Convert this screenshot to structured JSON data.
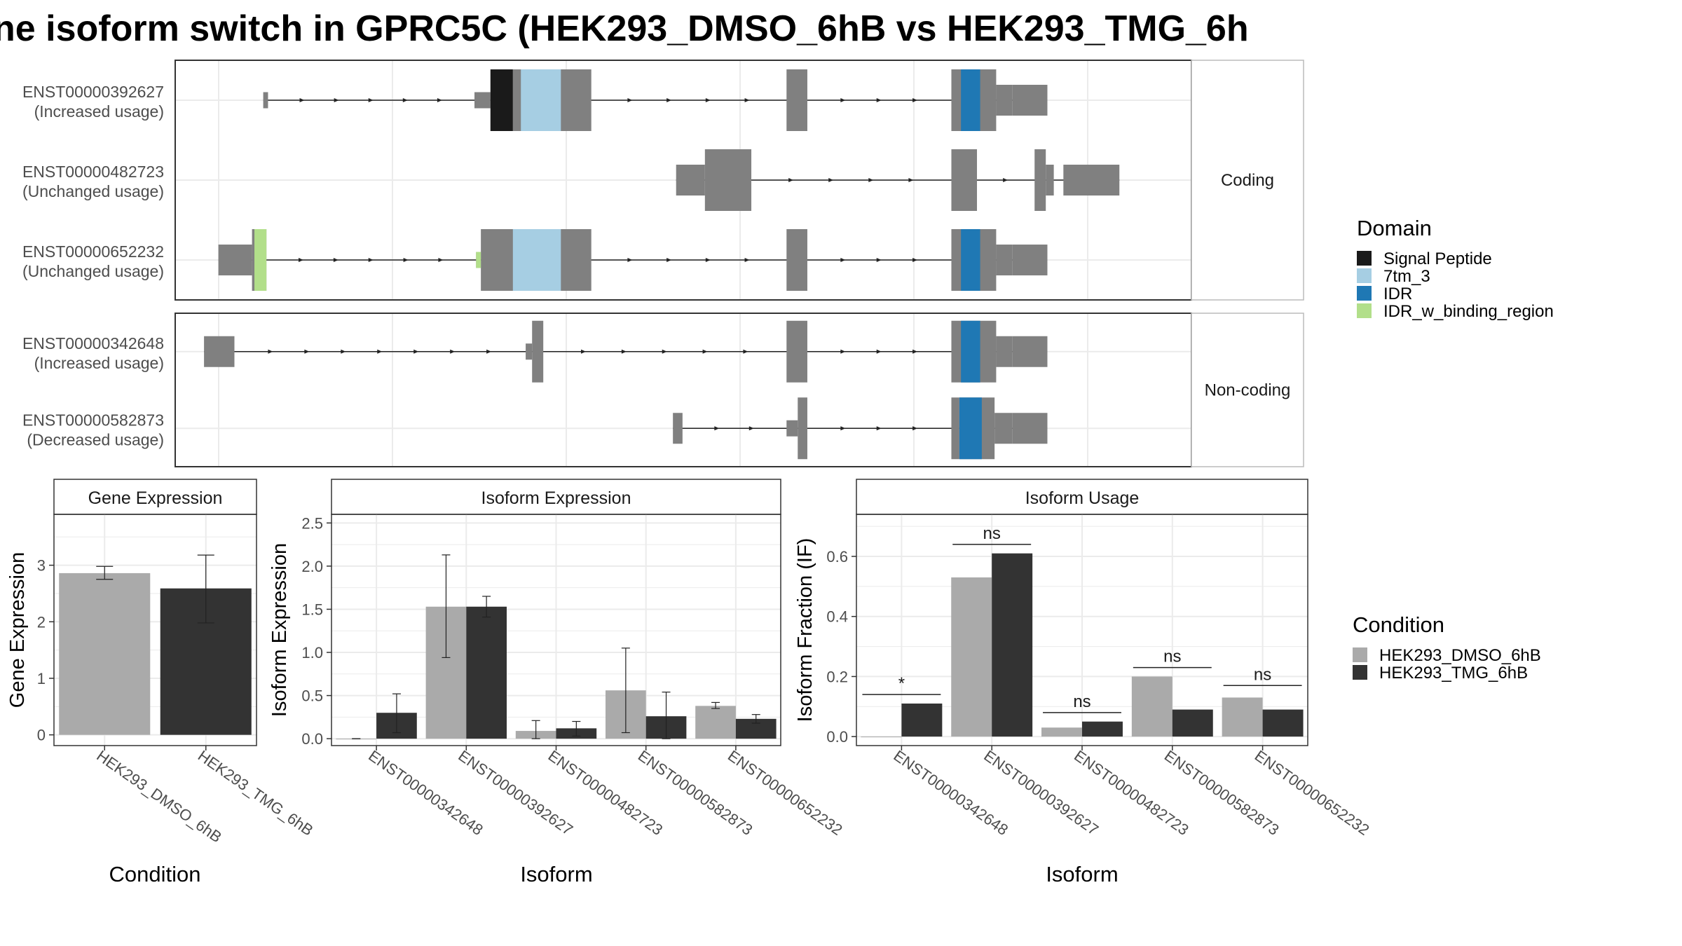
{
  "title": "ne isoform switch in GPRC5C (HEK293_DMSO_6hB vs HEK293_TMG_6h",
  "colors": {
    "exon": "#808080",
    "dmso": "#aaaaaa",
    "tmg": "#333333",
    "signal_peptide": "#1a1a1a",
    "tm3": "#a6cee3",
    "idr": "#1f78b4",
    "idr_binding": "#b2df8a",
    "grid": "#ebebeb",
    "panel_border": "#333333",
    "strip_border": "#bbbbbb"
  },
  "legends": {
    "domain": {
      "title": "Domain",
      "items": [
        {
          "label": "Signal Peptide",
          "color": "#1a1a1a"
        },
        {
          "label": "7tm_3",
          "color": "#a6cee3"
        },
        {
          "label": "IDR",
          "color": "#1f78b4"
        },
        {
          "label": "IDR_w_binding_region",
          "color": "#b2df8a"
        }
      ]
    },
    "condition": {
      "title": "Condition",
      "items": [
        {
          "label": "HEK293_DMSO_6hB",
          "color": "#aaaaaa"
        },
        {
          "label": "HEK293_TMG_6hB",
          "color": "#333333"
        }
      ]
    }
  },
  "chart_data": [
    {
      "type": "gene_structure",
      "facets": [
        {
          "strip": "Coding",
          "isoforms": [
            {
              "id": "ENST00000392627",
              "usage": "(Increased usage)",
              "exons": [
                [
                  10,
                  13,
                  "s"
                ],
                [
                  142,
                  152,
                  "s"
                ],
                [
                  152,
                  215,
                  "b"
                ],
                [
                  337,
                  350,
                  "b"
                ],
                [
                  440,
                  468,
                  "b"
                ],
                [
                  468,
                  478,
                  "t"
                ],
                [
                  478,
                  500,
                  "t"
                ]
              ],
              "domains": [
                [
                  152,
                  166,
                  "signal_peptide"
                ],
                [
                  166,
                  171,
                  "gray"
                ],
                [
                  171,
                  196,
                  "tm3"
                ],
                [
                  446,
                  458,
                  "idr"
                ]
              ]
            },
            {
              "id": "ENST00000482723",
              "usage": "(Unchanged usage)",
              "exons": [
                [
                  268,
                  286,
                  "t"
                ],
                [
                  286,
                  315,
                  "b"
                ],
                [
                  440,
                  456,
                  "b"
                ],
                [
                  492,
                  499,
                  "b"
                ],
                [
                  499,
                  504,
                  "t"
                ],
                [
                  510,
                  545,
                  "t"
                ]
              ],
              "domains": []
            },
            {
              "id": "ENST00000652232",
              "usage": "(Unchanged usage)",
              "exons": [
                [
                  -18,
                  3,
                  "t"
                ],
                [
                  3,
                  12,
                  "b"
                ],
                [
                  143,
                  146,
                  "s"
                ],
                [
                  146,
                  215,
                  "b"
                ],
                [
                  337,
                  350,
                  "b"
                ],
                [
                  440,
                  468,
                  "b"
                ],
                [
                  468,
                  478,
                  "t"
                ],
                [
                  478,
                  500,
                  "t"
                ]
              ],
              "domains": [
                [
                  4.5,
                  12,
                  "idr_binding"
                ],
                [
                  143,
                  146,
                  "idr_binding"
                ],
                [
                  166,
                  196,
                  "tm3"
                ],
                [
                  446,
                  458,
                  "idr"
                ]
              ]
            }
          ]
        },
        {
          "strip": "Non-coding",
          "isoforms": [
            {
              "id": "ENST00000342648",
              "usage": "(Increased usage)",
              "exons": [
                [
                  -27,
                  -8,
                  "t"
                ],
                [
                  174,
                  178,
                  "s"
                ],
                [
                  178,
                  185,
                  "b"
                ],
                [
                  337,
                  350,
                  "b"
                ],
                [
                  440,
                  468,
                  "b"
                ],
                [
                  468,
                  478,
                  "t"
                ],
                [
                  478,
                  500,
                  "t"
                ]
              ],
              "domains": [
                [
                  446,
                  458,
                  "idr"
                ]
              ]
            },
            {
              "id": "ENST00000582873",
              "usage": "(Decreased usage)",
              "exons": [
                [
                  266,
                  272,
                  "t"
                ],
                [
                  337,
                  344,
                  "s"
                ],
                [
                  344,
                  350,
                  "b"
                ],
                [
                  440,
                  445,
                  "b"
                ],
                [
                  445,
                  467,
                  "b"
                ],
                [
                  467,
                  478,
                  "t"
                ],
                [
                  478,
                  500,
                  "t"
                ]
              ],
              "domains": [
                [
                  445,
                  459,
                  "idr"
                ]
              ]
            }
          ]
        }
      ]
    },
    {
      "type": "bar",
      "title": "Gene Expression",
      "xlabel": "Condition",
      "ylabel": "Gene Expression",
      "categories": [
        "HEK293_DMSO_6hB",
        "HEK293_TMG_6hB"
      ],
      "values": [
        2.86,
        2.59
      ],
      "error_low": [
        2.75,
        1.98
      ],
      "error_high": [
        2.98,
        3.18
      ],
      "ylim": [
        -0.19,
        3.9
      ],
      "yticks": [
        0,
        1,
        2,
        3
      ]
    },
    {
      "type": "bar",
      "title": "Isoform Expression",
      "xlabel": "Isoform",
      "ylabel": "Isoform Expression",
      "categories": [
        "ENST00000342648",
        "ENST00000392627",
        "ENST00000482723",
        "ENST00000582873",
        "ENST00000652232"
      ],
      "series": [
        {
          "name": "HEK293_DMSO_6hB",
          "values": [
            0.0,
            1.53,
            0.09,
            0.56,
            0.38
          ],
          "error_low": [
            0.0,
            0.94,
            0.0,
            0.07,
            0.35
          ],
          "error_high": [
            0.0,
            2.13,
            0.21,
            1.05,
            0.42
          ]
        },
        {
          "name": "HEK293_TMG_6hB",
          "values": [
            0.3,
            1.53,
            0.12,
            0.26,
            0.23
          ],
          "error_low": [
            0.07,
            1.41,
            0.03,
            0.0,
            0.18
          ],
          "error_high": [
            0.52,
            1.65,
            0.2,
            0.54,
            0.28
          ]
        }
      ],
      "ylim": [
        -0.08,
        2.6
      ],
      "yticks": [
        0.0,
        0.5,
        1.0,
        1.5,
        2.0,
        2.5
      ]
    },
    {
      "type": "bar",
      "title": "Isoform Usage",
      "xlabel": "Isoform",
      "ylabel": "Isoform Fraction (IF)",
      "categories": [
        "ENST00000342648",
        "ENST00000392627",
        "ENST00000482723",
        "ENST00000582873",
        "ENST00000652232"
      ],
      "series": [
        {
          "name": "HEK293_DMSO_6hB",
          "values": [
            0.0,
            0.53,
            0.03,
            0.2,
            0.13
          ]
        },
        {
          "name": "HEK293_TMG_6hB",
          "values": [
            0.11,
            0.61,
            0.05,
            0.09,
            0.09
          ]
        }
      ],
      "significance": [
        "*",
        "ns",
        "ns",
        "ns",
        "ns"
      ],
      "sig_y": [
        0.14,
        0.64,
        0.08,
        0.23,
        0.17
      ],
      "ylim": [
        -0.03,
        0.74
      ],
      "yticks": [
        0.0,
        0.2,
        0.4,
        0.6
      ]
    }
  ]
}
